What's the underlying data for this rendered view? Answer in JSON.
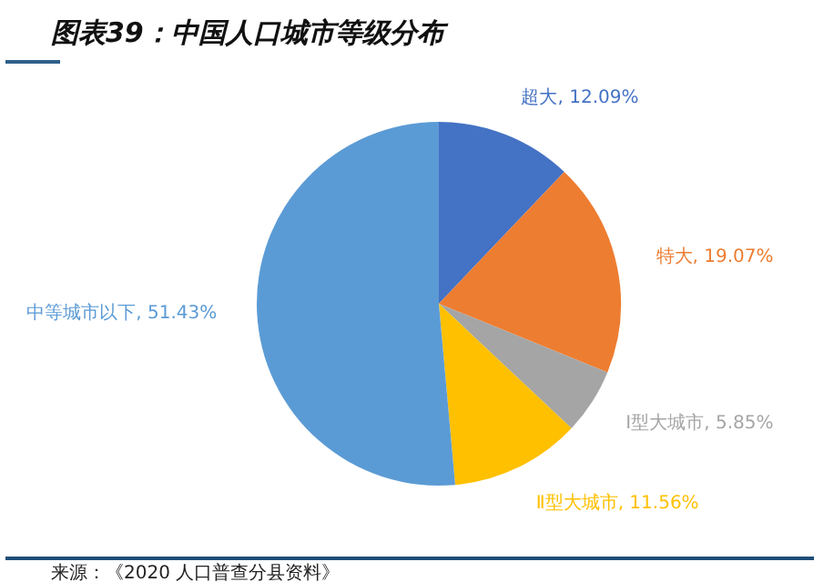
{
  "chart_data": {
    "type": "pie",
    "title": "图表39：中国人口城市等级分布",
    "categories": [
      "超大",
      "特大",
      "Ⅰ型大城市",
      "Ⅱ型大城市",
      "中等城市以下"
    ],
    "values": [
      12.09,
      19.07,
      5.85,
      11.56,
      51.43
    ],
    "colors": [
      "#4472c4",
      "#ed7d31",
      "#a5a5a5",
      "#ffc000",
      "#5b9bd5"
    ],
    "value_labels": [
      "12.09%",
      "19.07%",
      "5.85%",
      "11.56%",
      "51.43%"
    ],
    "annotations": [
      "来源：《2020 人口普查分县资料》"
    ]
  }
}
